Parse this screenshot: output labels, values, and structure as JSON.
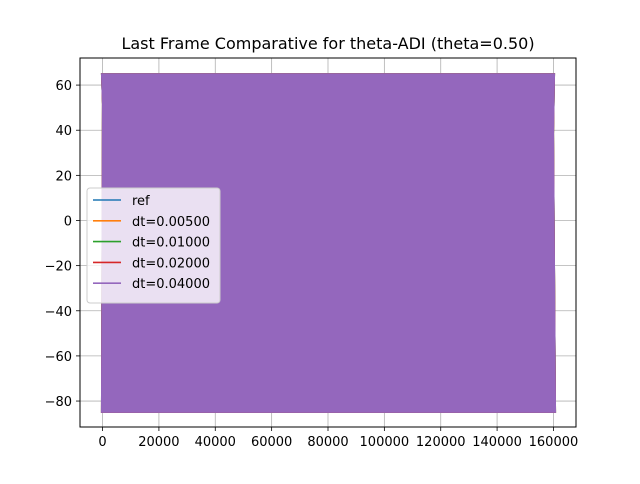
{
  "chart_data": {
    "type": "line",
    "title": "Last Frame Comparative for theta-ADI (theta=0.50)",
    "xlabel": "",
    "ylabel": "",
    "xlim": [
      -8000,
      168000
    ],
    "ylim": [
      -91.5,
      72
    ],
    "xticks": [
      0,
      20000,
      40000,
      60000,
      80000,
      100000,
      120000,
      140000,
      160000
    ],
    "xtick_labels": [
      "0",
      "20000",
      "40000",
      "60000",
      "80000",
      "100000",
      "120000",
      "140000",
      "160000"
    ],
    "yticks": [
      -80,
      -60,
      -40,
      -20,
      0,
      20,
      40,
      60
    ],
    "ytick_labels": [
      "−80",
      "−60",
      "−40",
      "−20",
      "0",
      "20",
      "40",
      "60"
    ],
    "grid": true,
    "legend_position": "center-left",
    "series": [
      {
        "name": "ref",
        "color": "#1f77b4",
        "x_range": [
          0,
          160000
        ],
        "y_range": [
          -85,
          65
        ]
      },
      {
        "name": "dt=0.00500",
        "color": "#ff7f0e",
        "x_range": [
          0,
          160000
        ],
        "y_range": [
          -85,
          65
        ]
      },
      {
        "name": "dt=0.01000",
        "color": "#2ca02c",
        "x_range": [
          0,
          160000
        ],
        "y_range": [
          -85,
          65
        ]
      },
      {
        "name": "dt=0.02000",
        "color": "#d62728",
        "x_range": [
          0,
          160000
        ],
        "y_range": [
          -85,
          65
        ]
      },
      {
        "name": "dt=0.04000",
        "color": "#9467bd",
        "x_range": [
          0,
          160000
        ],
        "y_range": [
          -85,
          65
        ]
      }
    ]
  }
}
